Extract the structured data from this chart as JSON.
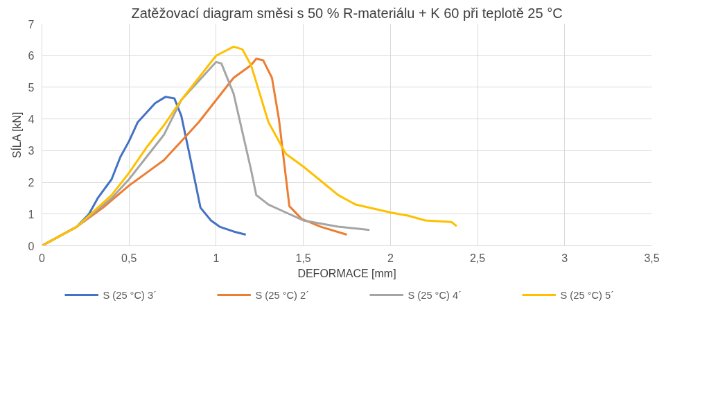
{
  "chart_data": {
    "type": "line",
    "title": "Zatěžovací diagram směsi s 50 % R-materiálu + K 60 při teplotě 25 °C",
    "xlabel": "DEFORMACE [mm]",
    "ylabel": "SÍLA [kN]",
    "xlim": [
      0,
      3.5
    ],
    "ylim": [
      0,
      7
    ],
    "xticks": [
      0,
      {
        "value": 0.5,
        "label": "0,5"
      },
      1,
      {
        "value": 1.5,
        "label": "1,5"
      },
      2,
      {
        "value": 2.5,
        "label": "2,5"
      },
      3,
      {
        "value": 3.5,
        "label": "3,5"
      }
    ],
    "yticks": [
      0,
      1,
      2,
      3,
      4,
      5,
      6,
      7
    ],
    "grid": true,
    "legend": "bottom",
    "line_style": "solid",
    "series": [
      {
        "name": "S (25 °C) 3´",
        "color": "#4472c4",
        "x": [
          0,
          0.1,
          0.2,
          0.27,
          0.32,
          0.4,
          0.45,
          0.5,
          0.55,
          0.6,
          0.65,
          0.71,
          0.76,
          0.8,
          0.85,
          0.91,
          0.97,
          1.02,
          1.1,
          1.17
        ],
        "values": [
          0,
          0.3,
          0.6,
          1.0,
          1.5,
          2.1,
          2.8,
          3.3,
          3.9,
          4.2,
          4.5,
          4.7,
          4.65,
          4.1,
          2.8,
          1.2,
          0.8,
          0.6,
          0.45,
          0.35
        ]
      },
      {
        "name": "S (25 °C) 2´",
        "color": "#ed7d31",
        "x": [
          0,
          0.2,
          0.35,
          0.5,
          0.6,
          0.7,
          0.8,
          0.9,
          1.0,
          1.1,
          1.2,
          1.23,
          1.27,
          1.32,
          1.36,
          1.42,
          1.49,
          1.6,
          1.75
        ],
        "values": [
          0,
          0.6,
          1.2,
          1.9,
          2.3,
          2.7,
          3.3,
          3.9,
          4.6,
          5.3,
          5.7,
          5.9,
          5.85,
          5.3,
          4.0,
          1.25,
          0.85,
          0.6,
          0.35
        ]
      },
      {
        "name": "S (25 °C) 4´",
        "color": "#a5a5a5",
        "x": [
          0,
          0.2,
          0.4,
          0.5,
          0.6,
          0.7,
          0.8,
          0.9,
          1.0,
          1.03,
          1.1,
          1.15,
          1.2,
          1.23,
          1.3,
          1.4,
          1.5,
          1.7,
          1.88
        ],
        "values": [
          0,
          0.6,
          1.5,
          2.1,
          2.8,
          3.5,
          4.6,
          5.2,
          5.8,
          5.75,
          4.8,
          3.6,
          2.4,
          1.6,
          1.3,
          1.05,
          0.8,
          0.6,
          0.5
        ]
      },
      {
        "name": "S (25 °C) 5´",
        "color": "#ffc000",
        "x": [
          0,
          0.2,
          0.4,
          0.5,
          0.6,
          0.7,
          0.8,
          0.9,
          1.0,
          1.1,
          1.15,
          1.2,
          1.25,
          1.3,
          1.4,
          1.5,
          1.6,
          1.7,
          1.8,
          2.0,
          2.1,
          2.2,
          2.35,
          2.38
        ],
        "values": [
          0,
          0.6,
          1.6,
          2.3,
          3.1,
          3.8,
          4.6,
          5.3,
          6.0,
          6.28,
          6.2,
          5.7,
          4.8,
          3.9,
          2.9,
          2.5,
          2.05,
          1.6,
          1.3,
          1.05,
          0.95,
          0.8,
          0.75,
          0.62
        ]
      }
    ]
  }
}
